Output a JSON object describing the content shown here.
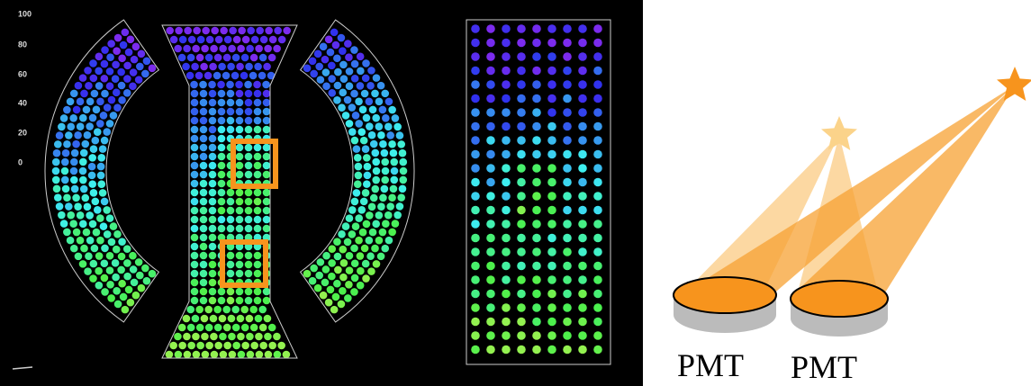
{
  "event_display": {
    "scale_labels": [
      100,
      80,
      60,
      40,
      20,
      0
    ]
  },
  "diagram": {
    "labels": [
      "PMT",
      "PMT"
    ]
  }
}
